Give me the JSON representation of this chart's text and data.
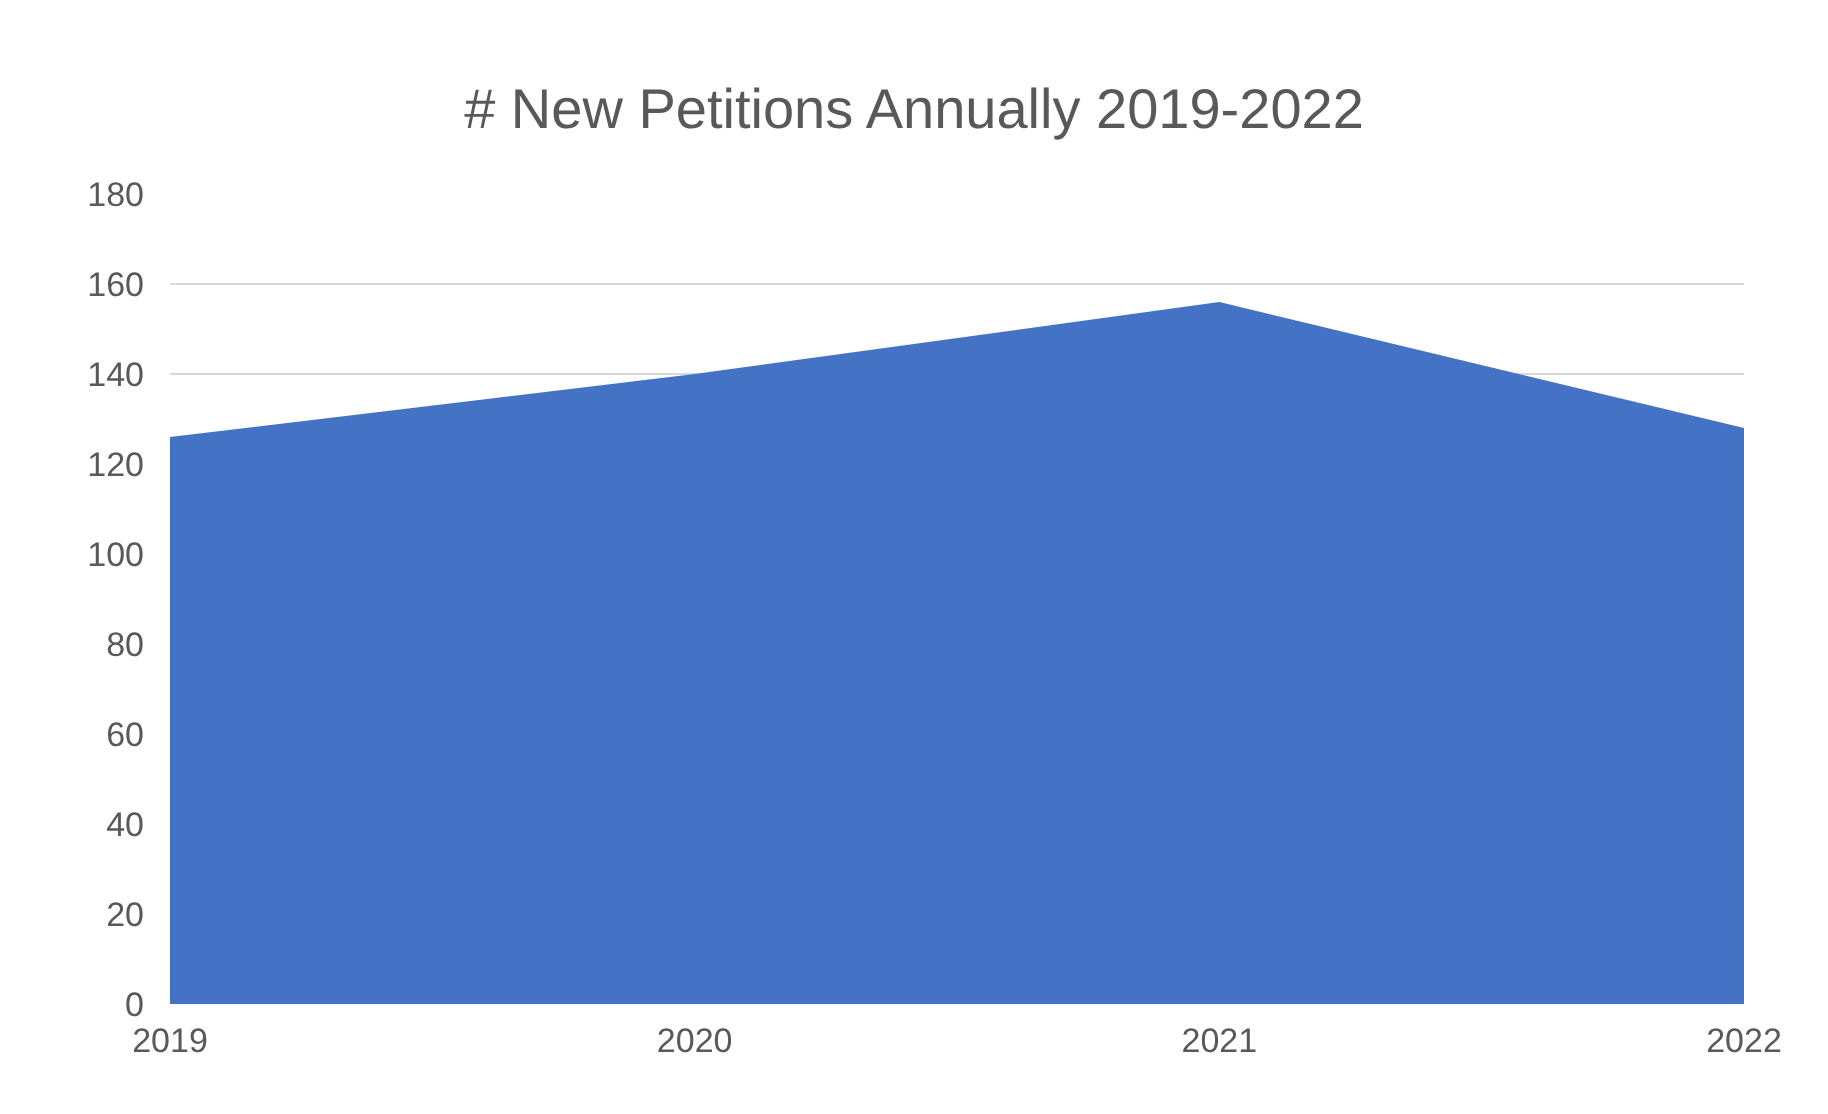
{
  "chart_data": {
    "type": "area",
    "title": "# New Petitions Annually 2019-2022",
    "categories": [
      "2019",
      "2020",
      "2021",
      "2022"
    ],
    "values": [
      126,
      140,
      156,
      128
    ],
    "color": "#4472c4",
    "ylim": [
      0,
      180
    ],
    "yticks": [
      0,
      20,
      40,
      60,
      80,
      100,
      120,
      140,
      160,
      180
    ],
    "grid": "y"
  }
}
